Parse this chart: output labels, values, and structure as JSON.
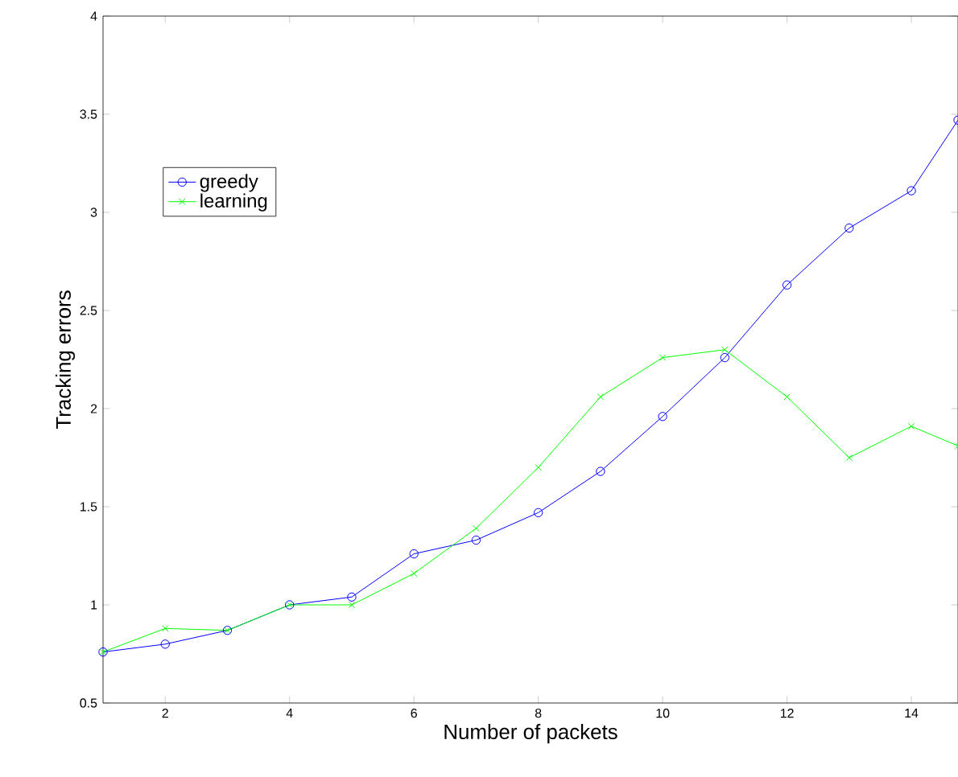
{
  "chart_data": {
    "type": "line",
    "xlabel": "Number of packets",
    "ylabel": "Tracking errors",
    "xlim": [
      1,
      14.75
    ],
    "xticks": [
      2,
      4,
      6,
      8,
      10,
      12,
      14
    ],
    "ylim": [
      0.5,
      4
    ],
    "yticks": [
      0.5,
      1,
      1.5,
      2,
      2.5,
      3,
      3.5,
      4
    ],
    "grid": false,
    "legend": "top left",
    "series": [
      {
        "name": "greedy",
        "color": "#0000ff",
        "marker": "circle",
        "x": [
          1,
          2,
          3,
          4,
          5,
          6,
          7,
          8,
          9,
          10,
          11,
          12,
          13,
          14,
          14.75
        ],
        "values": [
          0.76,
          0.8,
          0.87,
          1.0,
          1.04,
          1.26,
          1.33,
          1.47,
          1.68,
          1.96,
          2.26,
          2.63,
          2.92,
          3.11,
          3.47
        ]
      },
      {
        "name": "learning",
        "color": "#00ff00",
        "marker": "cross",
        "x": [
          1,
          2,
          3,
          4,
          5,
          6,
          7,
          8,
          9,
          10,
          11,
          12,
          13,
          14,
          14.75
        ],
        "values": [
          0.76,
          0.88,
          0.87,
          1.0,
          1.0,
          1.16,
          1.39,
          1.7,
          2.06,
          2.26,
          2.3,
          2.06,
          1.75,
          1.91,
          1.81
        ]
      }
    ]
  }
}
